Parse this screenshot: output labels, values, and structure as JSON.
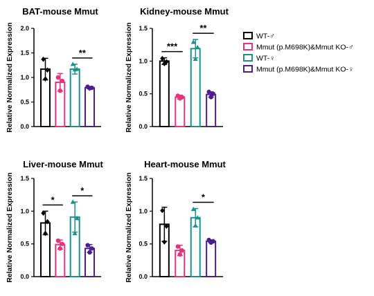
{
  "chart_data": [
    {
      "type": "bar",
      "title": "BAT-mouse Mmut",
      "ylabel": "Relative Normalized Expression",
      "ylim": [
        0,
        2.0
      ],
      "yticks": [
        "0.0",
        "0.5",
        "1.0",
        "1.5",
        "2.0"
      ],
      "series": [
        {
          "name": "WT-♂",
          "mean": 1.17,
          "err": 0.22,
          "points": [
            1.37,
            1.15,
            0.97
          ]
        },
        {
          "name": "Mmut (p.M698K)&Mmut KO-♂",
          "mean": 0.9,
          "err": 0.18,
          "points": [
            1.0,
            0.93,
            0.73
          ]
        },
        {
          "name": "WT-♀",
          "mean": 1.17,
          "err": 0.1,
          "points": [
            1.27,
            1.17,
            1.16
          ]
        },
        {
          "name": "Mmut (p.M698K)&Mmut KO-♀",
          "mean": 0.79,
          "err": 0.02,
          "points": [
            0.81,
            0.79,
            0.78
          ]
        }
      ],
      "significance": [
        {
          "label": "**",
          "from": 2,
          "to": 3
        }
      ]
    },
    {
      "type": "bar",
      "title": "Kidney-mouse Mmut",
      "ylabel": "Relative Normalized Expression",
      "ylim": [
        0,
        1.5
      ],
      "yticks": [
        "0.0",
        "0.5",
        "1.0",
        "1.5"
      ],
      "series": [
        {
          "name": "WT-♂",
          "mean": 1.0,
          "err": 0.05,
          "points": [
            1.04,
            0.99,
            0.96
          ]
        },
        {
          "name": "Mmut (p.M698K)&Mmut KO-♂",
          "mean": 0.45,
          "err": 0.03,
          "points": [
            0.47,
            0.45,
            0.43
          ]
        },
        {
          "name": "WT-♀",
          "mean": 1.19,
          "err": 0.14,
          "points": [
            1.29,
            1.21,
            1.03
          ]
        },
        {
          "name": "Mmut (p.M698K)&Mmut KO-♀",
          "mean": 0.49,
          "err": 0.04,
          "points": [
            0.53,
            0.5,
            0.45
          ]
        }
      ],
      "significance": [
        {
          "label": "***",
          "from": 0,
          "to": 1
        },
        {
          "label": "**",
          "from": 2,
          "to": 3
        }
      ]
    },
    {
      "type": "bar",
      "title": "Liver-mouse Mmut",
      "ylabel": "Relative Normalized Expression",
      "ylim": [
        0,
        1.5
      ],
      "yticks": [
        "0.0",
        "0.5",
        "1.0",
        "1.5"
      ],
      "series": [
        {
          "name": "WT-♂",
          "mean": 0.82,
          "err": 0.18,
          "points": [
            0.97,
            0.84,
            0.66
          ]
        },
        {
          "name": "Mmut (p.M698K)&Mmut KO-♂",
          "mean": 0.49,
          "err": 0.07,
          "points": [
            0.55,
            0.5,
            0.43
          ]
        },
        {
          "name": "WT-♀",
          "mean": 0.91,
          "err": 0.23,
          "points": [
            1.14,
            0.89,
            0.66
          ]
        },
        {
          "name": "Mmut (p.M698K)&Mmut KO-♀",
          "mean": 0.43,
          "err": 0.06,
          "points": [
            0.48,
            0.43,
            0.37
          ]
        }
      ],
      "significance": [
        {
          "label": "*",
          "from": 0,
          "to": 1
        },
        {
          "label": "*",
          "from": 2,
          "to": 3
        }
      ]
    },
    {
      "type": "bar",
      "title": "Heart-mouse Mmut",
      "ylabel": "Relative Normalized Expression",
      "ylim": [
        0,
        1.5
      ],
      "yticks": [
        "0.0",
        "0.5",
        "1.0",
        "1.5"
      ],
      "series": [
        {
          "name": "WT-♂",
          "mean": 0.8,
          "err": 0.26,
          "points": [
            1.01,
            0.77,
            0.53
          ]
        },
        {
          "name": "Mmut (p.M698K)&Mmut KO-♂",
          "mean": 0.4,
          "err": 0.08,
          "points": [
            0.46,
            0.4,
            0.34
          ]
        },
        {
          "name": "WT-♀",
          "mean": 0.9,
          "err": 0.14,
          "points": [
            1.03,
            0.9,
            0.78
          ]
        },
        {
          "name": "Mmut (p.M698K)&Mmut KO-♀",
          "mean": 0.54,
          "err": 0.02,
          "points": [
            0.56,
            0.54,
            0.52
          ]
        }
      ],
      "significance": [
        {
          "label": "*",
          "from": 2,
          "to": 3
        }
      ]
    }
  ],
  "legend": {
    "entries": [
      "WT-♂",
      "Mmut (p.M698K)&Mmut KO-♂",
      "WT-♀",
      "Mmut (p.M698K)&Mmut KO-♀"
    ],
    "colors": [
      "#000000",
      "#e6337a",
      "#1b918a",
      "#4c1d8c"
    ],
    "markers": [
      "diamond",
      "circle",
      "triangle",
      "circle"
    ]
  }
}
